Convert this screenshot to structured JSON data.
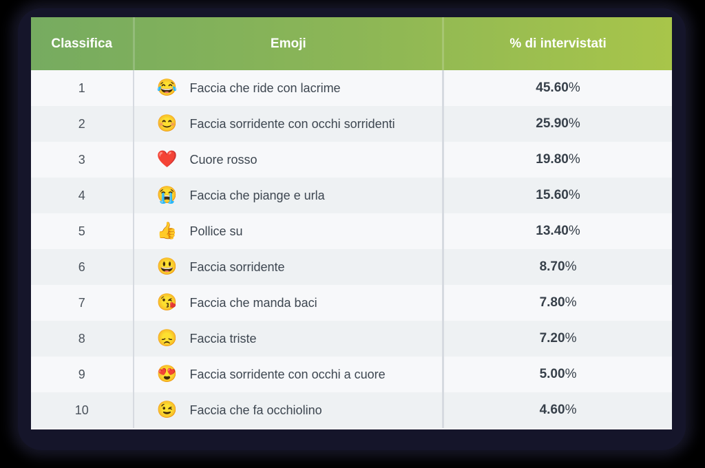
{
  "table": {
    "headers": {
      "rank": "Classifica",
      "emoji": "Emoji",
      "percent": "% di intervistati"
    },
    "colors": {
      "header_start": "#76ab60",
      "header_end": "#a8c54a",
      "row_odd": "#f7f8fa",
      "row_even": "#eef1f3",
      "text": "#3d4650"
    },
    "rows": [
      {
        "rank": "1",
        "icon": "face-with-tears-of-joy-icon",
        "glyph": "😂",
        "name": "Faccia che ride con lacrime",
        "value": "45.60",
        "unit": "%"
      },
      {
        "rank": "2",
        "icon": "smiling-face-with-smiling-eyes-icon",
        "glyph": "😊",
        "name": "Faccia sorridente con occhi sorridenti",
        "value": "25.90",
        "unit": "%"
      },
      {
        "rank": "3",
        "icon": "red-heart-icon",
        "glyph": "❤️",
        "name": "Cuore rosso",
        "value": "19.80",
        "unit": "%"
      },
      {
        "rank": "4",
        "icon": "loudly-crying-face-icon",
        "glyph": "😭",
        "name": "Faccia che piange e urla",
        "value": "15.60",
        "unit": "%"
      },
      {
        "rank": "5",
        "icon": "thumbs-up-icon",
        "glyph": "👍",
        "name": "Pollice su",
        "value": "13.40",
        "unit": "%"
      },
      {
        "rank": "6",
        "icon": "grinning-face-icon",
        "glyph": "😃",
        "name": "Faccia sorridente",
        "value": "8.70",
        "unit": "%"
      },
      {
        "rank": "7",
        "icon": "face-blowing-kiss-icon",
        "glyph": "😘",
        "name": "Faccia che manda baci",
        "value": "7.80",
        "unit": "%"
      },
      {
        "rank": "8",
        "icon": "disappointed-face-icon",
        "glyph": "😞",
        "name": "Faccia triste",
        "value": "7.20",
        "unit": "%"
      },
      {
        "rank": "9",
        "icon": "heart-eyes-face-icon",
        "glyph": "😍",
        "name": "Faccia sorridente con occhi a cuore",
        "value": "5.00",
        "unit": "%"
      },
      {
        "rank": "10",
        "icon": "winking-face-icon",
        "glyph": "😉",
        "name": "Faccia che fa occhiolino",
        "value": "4.60",
        "unit": "%"
      }
    ]
  }
}
